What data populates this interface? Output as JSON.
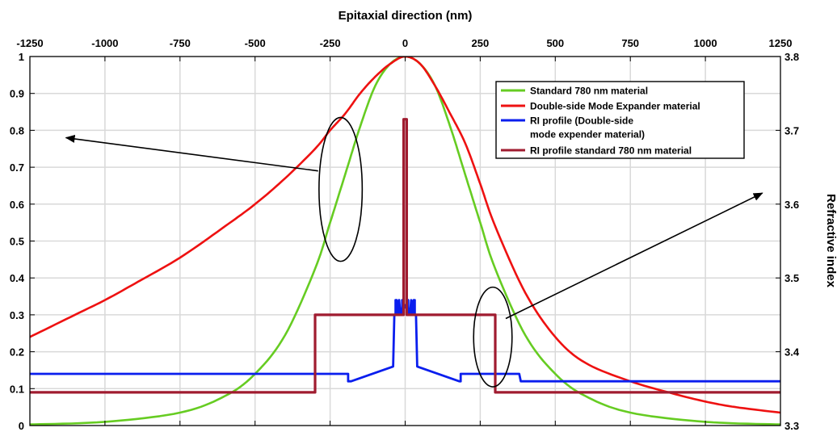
{
  "chart_data": {
    "type": "line",
    "title": "",
    "xlabel": "Epitaxial direction (nm)",
    "ylabel": "",
    "y2label": "Refractive index",
    "xlim": [
      -1250,
      1250
    ],
    "ylim": [
      0,
      1
    ],
    "y2lim": [
      3.3,
      3.8
    ],
    "xticks": [
      "-1250",
      "-1000",
      "-750",
      "-500",
      "-250",
      "0",
      "250",
      "500",
      "750",
      "1000",
      "1250"
    ],
    "yticks": [
      "0",
      "0.1",
      "0.2",
      "0.3",
      "0.4",
      "0.5",
      "0.6",
      "0.7",
      "0.8",
      "0.9",
      "1"
    ],
    "y2ticks": [
      "3.3",
      "3.4",
      "3.5",
      "3.6",
      "3.7",
      "3.8"
    ],
    "grid": true,
    "legend_position": "top-right",
    "colors": {
      "standard": "#66cc22",
      "expander": "#ee1111",
      "ri_expander": "#0a1eee",
      "ri_standard": "#a01c30"
    },
    "series": [
      {
        "name": "Standard 780 nm material",
        "axis": "left",
        "color": "#66cc22",
        "x": [
          -1250,
          -1000,
          -750,
          -600,
          -500,
          -400,
          -300,
          -250,
          -200,
          -150,
          -100,
          -50,
          0,
          50,
          100,
          150,
          200,
          250,
          300,
          400,
          500,
          600,
          750,
          1000,
          1250
        ],
        "y": [
          0.003,
          0.01,
          0.035,
          0.08,
          0.14,
          0.245,
          0.425,
          0.55,
          0.68,
          0.81,
          0.92,
          0.98,
          1.0,
          0.98,
          0.92,
          0.81,
          0.68,
          0.55,
          0.425,
          0.245,
          0.14,
          0.08,
          0.035,
          0.01,
          0.003
        ]
      },
      {
        "name": "Double-side Mode Expander material",
        "axis": "left",
        "color": "#ee1111",
        "x": [
          -1250,
          -1100,
          -1000,
          -900,
          -750,
          -600,
          -500,
          -400,
          -300,
          -250,
          -200,
          -150,
          -100,
          -50,
          0,
          50,
          100,
          150,
          200,
          250,
          300,
          400,
          500,
          600,
          750,
          900,
          1000,
          1100,
          1250
        ],
        "y": [
          0.24,
          0.3,
          0.34,
          0.385,
          0.455,
          0.54,
          0.6,
          0.67,
          0.75,
          0.8,
          0.845,
          0.9,
          0.945,
          0.98,
          1.0,
          0.98,
          0.92,
          0.845,
          0.765,
          0.655,
          0.54,
          0.36,
          0.24,
          0.17,
          0.12,
          0.085,
          0.065,
          0.05,
          0.035
        ]
      },
      {
        "name": "RI profile (Double-side mode expender material)",
        "legend_lines": [
          "RI profile (Double-side",
          "mode expender material)"
        ],
        "axis": "right",
        "color": "#0a1eee",
        "x": [
          -1250,
          -190,
          -190,
          -180,
          -40,
          -36,
          -32,
          -32,
          -28,
          -24,
          -24,
          -20,
          -16,
          -14,
          -10,
          -10,
          0,
          10,
          10,
          14,
          16,
          20,
          24,
          24,
          28,
          32,
          32,
          36,
          40,
          180,
          185,
          185,
          380,
          385,
          1250
        ],
        "y": [
          3.37,
          3.37,
          3.36,
          3.36,
          3.38,
          3.45,
          3.45,
          3.47,
          3.47,
          3.45,
          3.46,
          3.47,
          3.45,
          3.45,
          3.46,
          3.47,
          3.46,
          3.47,
          3.46,
          3.45,
          3.45,
          3.47,
          3.46,
          3.45,
          3.47,
          3.47,
          3.45,
          3.45,
          3.38,
          3.36,
          3.36,
          3.37,
          3.37,
          3.36,
          3.36
        ]
      },
      {
        "name": "RI profile standard 780 nm material",
        "axis": "right",
        "color": "#a01c30",
        "x": [
          -1250,
          -300,
          -300,
          -5,
          -5,
          5,
          5,
          300,
          300,
          1250
        ],
        "y": [
          3.345,
          3.345,
          3.45,
          3.45,
          3.715,
          3.715,
          3.45,
          3.45,
          3.345,
          3.345
        ]
      }
    ],
    "annotations": [
      {
        "type": "ellipse",
        "x": -215,
        "y": 0.64,
        "rx_nm": 72,
        "ry": 0.195
      },
      {
        "type": "arrow",
        "from": [
          -290,
          0.69
        ],
        "to": [
          -1130,
          0.78
        ]
      },
      {
        "type": "ellipse",
        "x": 292,
        "y": 0.24,
        "rx_nm": 64,
        "ry": 0.135
      },
      {
        "type": "arrow",
        "from": [
          335,
          0.29
        ],
        "to": [
          1190,
          0.63
        ]
      }
    ]
  }
}
